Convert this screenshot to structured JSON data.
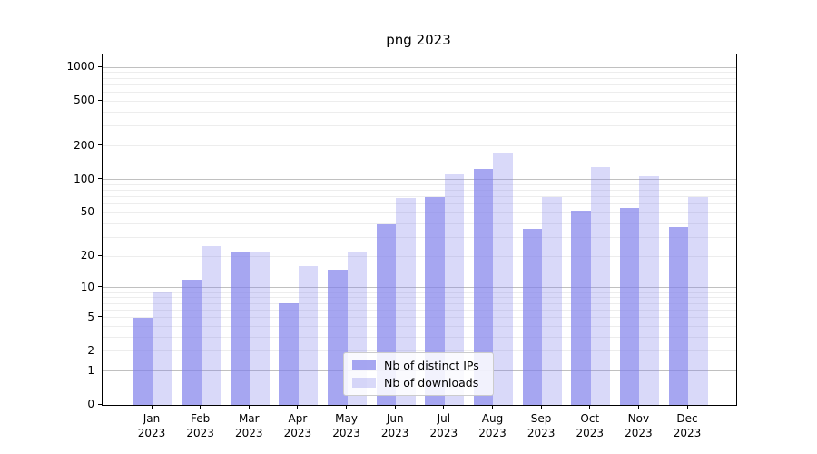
{
  "chart_data": {
    "type": "bar",
    "title": "png 2023",
    "year": "2023",
    "categories": [
      "Jan",
      "Feb",
      "Mar",
      "Apr",
      "May",
      "Jun",
      "Jul",
      "Aug",
      "Sep",
      "Oct",
      "Nov",
      "Dec"
    ],
    "series": [
      {
        "name": "Nb of distinct IPs",
        "color": "rgba(128,128,235,0.7)",
        "values": [
          5,
          12,
          22,
          7,
          15,
          39,
          69,
          125,
          36,
          52,
          55,
          37
        ]
      },
      {
        "name": "Nb of downloads",
        "color": "rgba(128,128,235,0.3)",
        "values": [
          9,
          25,
          22,
          16,
          22,
          68,
          112,
          170,
          70,
          128,
          106,
          69
        ]
      }
    ],
    "yscale": "log1p",
    "ylim": [
      0,
      1300
    ],
    "yticks": [
      0,
      1,
      2,
      5,
      10,
      20,
      50,
      100,
      200,
      500,
      1000
    ],
    "grid": {
      "major": [
        1,
        10,
        100,
        1000
      ],
      "minor": [
        2,
        3,
        4,
        5,
        6,
        7,
        8,
        9,
        20,
        30,
        40,
        50,
        60,
        70,
        80,
        90,
        200,
        300,
        400,
        500,
        600,
        700,
        800,
        900
      ]
    },
    "legend_position": "lower center",
    "colors": {
      "axis": "#000000",
      "grid_major": "#c0c0c0",
      "grid_minor": "#ededed"
    }
  }
}
